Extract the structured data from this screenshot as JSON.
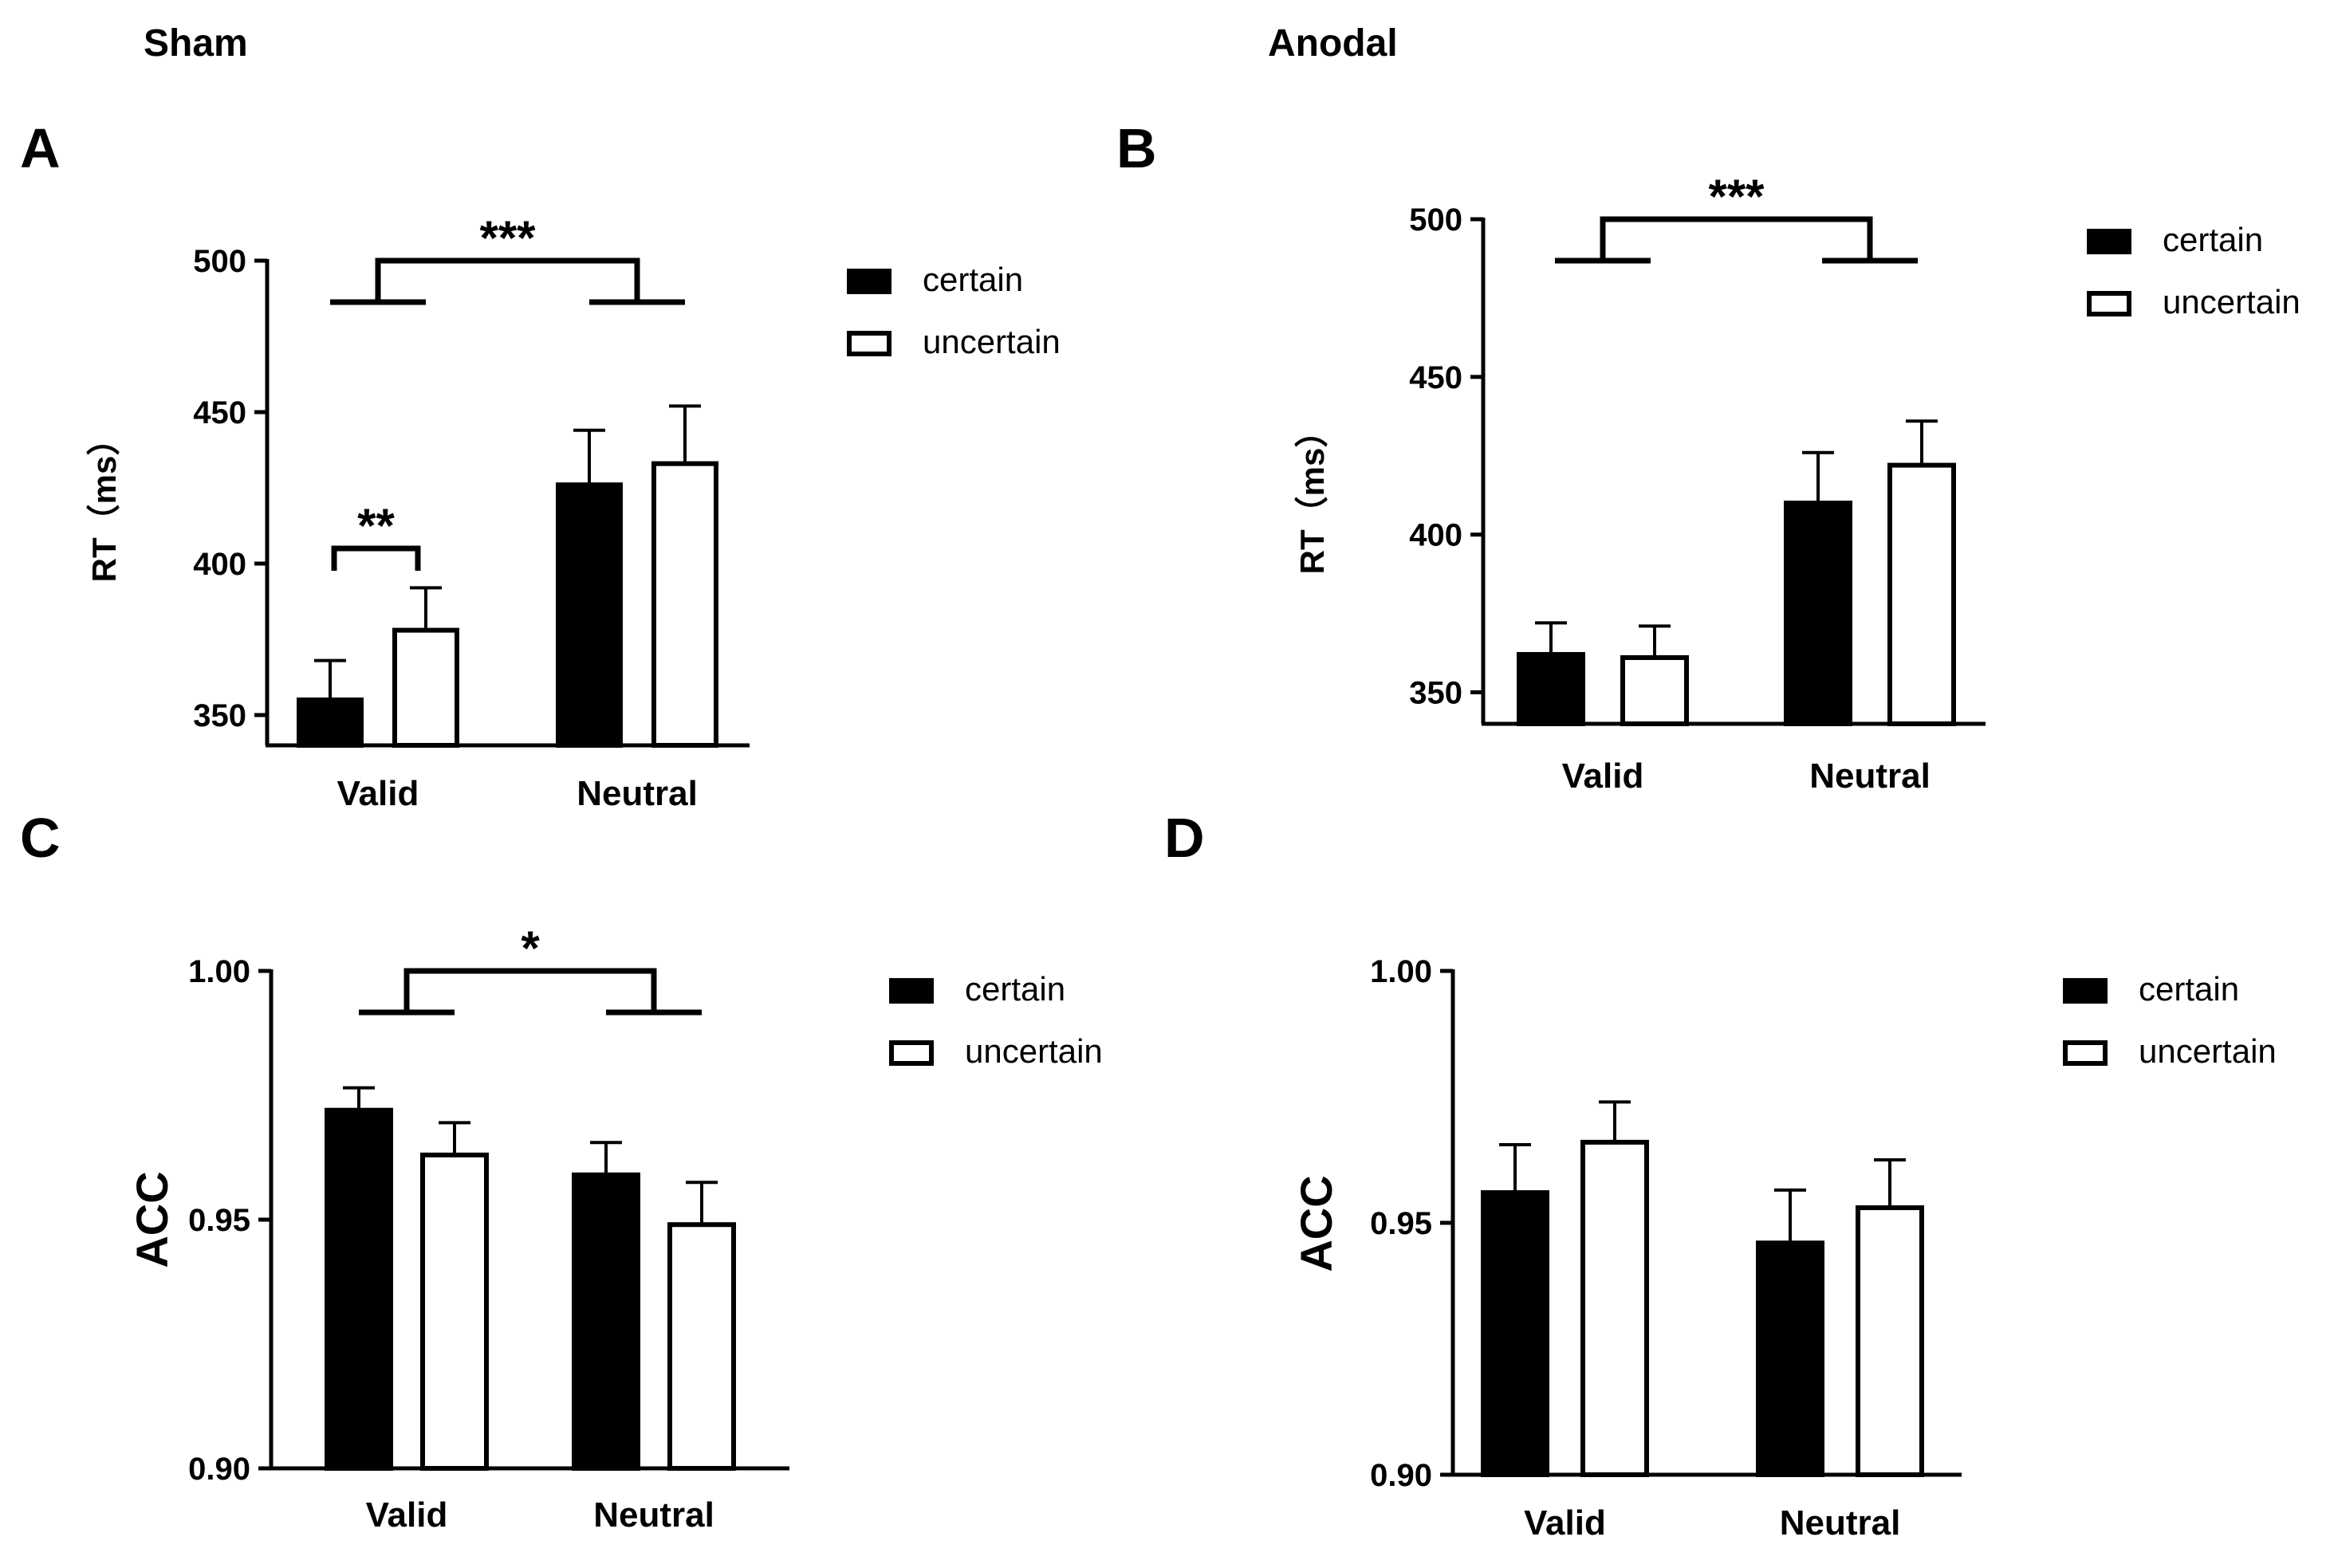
{
  "condition_titles": {
    "left": "Sham",
    "right": "Anodal"
  },
  "colors": {
    "certain": "#000000",
    "uncertain": "#ffffff",
    "stroke": "#000000"
  },
  "chart_data": [
    {
      "panel": "A",
      "type": "bar",
      "ylabel": "RT（ms）",
      "ylim": [
        340,
        500
      ],
      "yticks": [
        350,
        400,
        450,
        500
      ],
      "categories": [
        "Valid",
        "Neutral"
      ],
      "series": [
        {
          "name": "certain",
          "values": [
            355,
            426
          ],
          "errors": [
            13,
            18
          ]
        },
        {
          "name": "uncertain",
          "values": [
            378,
            433
          ],
          "errors": [
            14,
            19
          ]
        }
      ],
      "legend": [
        "certain",
        "uncertain"
      ],
      "annotations": [
        {
          "label": "***",
          "type": "between-groups",
          "y": 500
        },
        {
          "label": "**",
          "type": "within-group",
          "group": 0,
          "y": 405
        }
      ]
    },
    {
      "panel": "B",
      "type": "bar",
      "ylabel": "RT（ms）",
      "ylim": [
        340,
        500
      ],
      "yticks": [
        350,
        400,
        450,
        500
      ],
      "categories": [
        "Valid",
        "Neutral"
      ],
      "series": [
        {
          "name": "certain",
          "values": [
            362,
            410
          ],
          "errors": [
            10,
            16
          ]
        },
        {
          "name": "uncertain",
          "values": [
            361,
            422
          ],
          "errors": [
            10,
            14
          ]
        }
      ],
      "legend": [
        "certain",
        "uncertain"
      ],
      "annotations": [
        {
          "label": "***",
          "type": "between-groups",
          "y": 500
        }
      ]
    },
    {
      "panel": "C",
      "type": "bar",
      "ylabel": "ACC",
      "ylim": [
        0.9,
        1.0
      ],
      "yticks": [
        "0.90",
        "0.95",
        "1.00"
      ],
      "categories": [
        "Valid",
        "Neutral"
      ],
      "series": [
        {
          "name": "certain",
          "values": [
            0.972,
            0.959
          ],
          "errors": [
            0.0045,
            0.0065
          ]
        },
        {
          "name": "uncertain",
          "values": [
            0.963,
            0.949
          ],
          "errors": [
            0.0065,
            0.0085
          ]
        }
      ],
      "legend": [
        "certain",
        "uncertain"
      ],
      "annotations": [
        {
          "label": "*",
          "type": "between-groups",
          "y": 1.0
        }
      ]
    },
    {
      "panel": "D",
      "type": "bar",
      "ylabel": "ACC",
      "ylim": [
        0.9,
        1.0
      ],
      "yticks": [
        "0.90",
        "0.95",
        "1.00"
      ],
      "categories": [
        "Valid",
        "Neutral"
      ],
      "series": [
        {
          "name": "certain",
          "values": [
            0.956,
            0.946
          ],
          "errors": [
            0.0095,
            0.0105
          ]
        },
        {
          "name": "uncertain",
          "values": [
            0.966,
            0.953
          ],
          "errors": [
            0.008,
            0.0095
          ]
        }
      ],
      "legend": [
        "certain",
        "uncertain"
      ],
      "annotations": []
    }
  ]
}
